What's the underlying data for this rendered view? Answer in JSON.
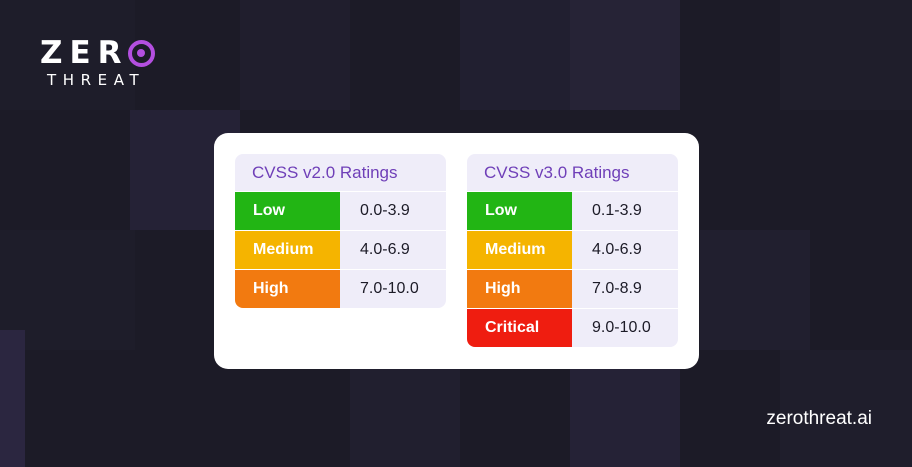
{
  "brand": {
    "logo_text": "ZERO THREAT",
    "logo_accent_color": "#b44fe0",
    "website": "zerothreat.ai"
  },
  "colors": {
    "background": "#1c1b27",
    "low": "#22b514",
    "medium": "#f5b400",
    "high": "#f27a10",
    "critical": "#ef1d10",
    "header_text": "#6f3fb8",
    "cell_bg": "#efedf9"
  },
  "tables": [
    {
      "title": "CVSS v2.0 Ratings",
      "rows": [
        {
          "label": "Low",
          "range": "0.0-3.9",
          "color": "#22b514"
        },
        {
          "label": "Medium",
          "range": "4.0-6.9",
          "color": "#f5b400"
        },
        {
          "label": "High",
          "range": "7.0-10.0",
          "color": "#f27a10"
        }
      ]
    },
    {
      "title": "CVSS v3.0 Ratings",
      "rows": [
        {
          "label": "Low",
          "range": "0.1-3.9",
          "color": "#22b514"
        },
        {
          "label": "Medium",
          "range": "4.0-6.9",
          "color": "#f5b400"
        },
        {
          "label": "High",
          "range": "7.0-8.9",
          "color": "#f27a10"
        },
        {
          "label": "Critical",
          "range": "9.0-10.0",
          "color": "#ef1d10"
        }
      ]
    }
  ]
}
